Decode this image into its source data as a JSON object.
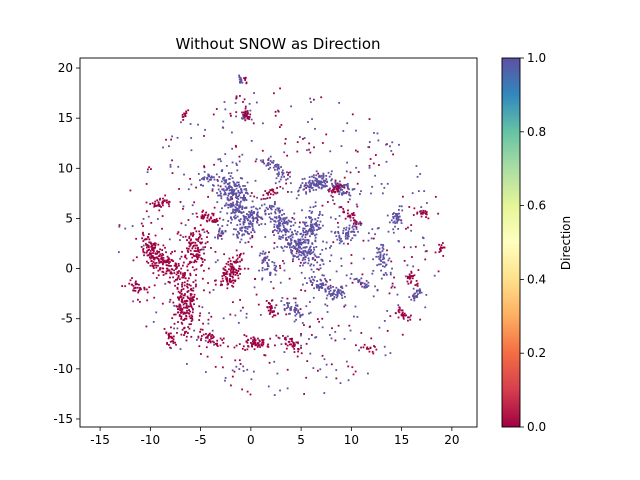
{
  "chart_data": {
    "type": "scatter",
    "title": "Without SNOW as Direction",
    "xlabel": "",
    "ylabel": "",
    "xlim": [
      -17,
      22.5
    ],
    "ylim": [
      -15.8,
      21
    ],
    "x_ticks": [
      -15,
      -10,
      -5,
      0,
      5,
      10,
      15,
      20
    ],
    "y_ticks": [
      -15,
      -10,
      -5,
      0,
      5,
      10,
      15,
      20
    ],
    "grid": false,
    "colorbar": {
      "label": "Direction",
      "range": [
        0.0,
        1.0
      ],
      "ticks": [
        "0.0",
        "0.2",
        "0.4",
        "0.6",
        "0.8",
        "1.0"
      ],
      "colormap": "Spectral",
      "stops": [
        "#9e0142",
        "#d53e4f",
        "#f46d43",
        "#fdae61",
        "#fee08b",
        "#ffffbf",
        "#e6f598",
        "#abdda4",
        "#66c2a5",
        "#3288bd",
        "#5e4fa2"
      ]
    },
    "series": [
      {
        "direction": 1.0,
        "color": "#5e4fa2",
        "clusters": [
          {
            "x": -1.5,
            "y": 7.0,
            "spread": 1.6,
            "n": 260
          },
          {
            "x": 0.0,
            "y": 4.5,
            "spread": 1.0,
            "n": 90
          },
          {
            "x": 3.0,
            "y": 4.5,
            "spread": 1.2,
            "n": 120
          },
          {
            "x": 5.0,
            "y": 2.0,
            "spread": 1.4,
            "n": 160
          },
          {
            "x": 6.5,
            "y": 8.5,
            "spread": 1.0,
            "n": 110
          },
          {
            "x": 9.0,
            "y": 8.0,
            "spread": 0.8,
            "n": 70
          },
          {
            "x": 6.0,
            "y": 4.0,
            "spread": 1.0,
            "n": 100
          },
          {
            "x": 9.5,
            "y": 3.5,
            "spread": 0.8,
            "n": 60
          },
          {
            "x": 7.0,
            "y": -1.5,
            "spread": 1.0,
            "n": 60
          },
          {
            "x": 4.5,
            "y": -4.0,
            "spread": 0.8,
            "n": 50
          },
          {
            "x": 13.0,
            "y": 1.0,
            "spread": 0.8,
            "n": 50
          },
          {
            "x": 14.5,
            "y": 5.0,
            "spread": 0.6,
            "n": 40
          },
          {
            "x": 2.5,
            "y": 10.0,
            "spread": 0.8,
            "n": 50
          },
          {
            "x": 8.5,
            "y": -2.5,
            "spread": 0.6,
            "n": 40
          },
          {
            "x": 1.5,
            "y": 0.5,
            "spread": 0.8,
            "n": 40
          },
          {
            "x": -4.0,
            "y": 9.0,
            "spread": 0.6,
            "n": 30
          },
          {
            "x": -1.0,
            "y": 18.8,
            "spread": 0.2,
            "n": 14
          },
          {
            "x": -0.5,
            "y": 15.3,
            "spread": 0.3,
            "n": 16
          },
          {
            "x": 16.5,
            "y": -2.5,
            "spread": 0.5,
            "n": 25
          },
          {
            "x": 11.0,
            "y": -1.5,
            "spread": 0.5,
            "n": 25
          },
          {
            "x": -3.0,
            "y": 3.5,
            "spread": 0.5,
            "n": 20
          }
        ]
      },
      {
        "direction": 0.0,
        "color": "#9e0142",
        "clusters": [
          {
            "x": -8.5,
            "y": 0.5,
            "spread": 1.4,
            "n": 180
          },
          {
            "x": -5.5,
            "y": 2.0,
            "spread": 1.2,
            "n": 120
          },
          {
            "x": -6.5,
            "y": -4.0,
            "spread": 1.4,
            "n": 170
          },
          {
            "x": -2.0,
            "y": -0.5,
            "spread": 1.0,
            "n": 120
          },
          {
            "x": -10.0,
            "y": 2.0,
            "spread": 0.8,
            "n": 60
          },
          {
            "x": -9.0,
            "y": 6.5,
            "spread": 0.6,
            "n": 40
          },
          {
            "x": -4.0,
            "y": 5.0,
            "spread": 0.6,
            "n": 40
          },
          {
            "x": 0.5,
            "y": -7.5,
            "spread": 0.8,
            "n": 60
          },
          {
            "x": -4.0,
            "y": -7.0,
            "spread": 0.6,
            "n": 40
          },
          {
            "x": 4.0,
            "y": -7.5,
            "spread": 0.6,
            "n": 40
          },
          {
            "x": 2.0,
            "y": -4.0,
            "spread": 0.5,
            "n": 30
          },
          {
            "x": -8.0,
            "y": -7.0,
            "spread": 0.5,
            "n": 25
          },
          {
            "x": 10.0,
            "y": 5.0,
            "spread": 0.6,
            "n": 30
          },
          {
            "x": 8.5,
            "y": 8.0,
            "spread": 0.6,
            "n": 30
          },
          {
            "x": 2.0,
            "y": 7.5,
            "spread": 0.5,
            "n": 20
          },
          {
            "x": 15.0,
            "y": -4.5,
            "spread": 0.5,
            "n": 25
          },
          {
            "x": 16.0,
            "y": -1.0,
            "spread": 0.5,
            "n": 25
          },
          {
            "x": 17.0,
            "y": 5.5,
            "spread": 0.4,
            "n": 20
          },
          {
            "x": 19.0,
            "y": 2.0,
            "spread": 0.3,
            "n": 14
          },
          {
            "x": -0.5,
            "y": 15.5,
            "spread": 0.4,
            "n": 25
          },
          {
            "x": -6.5,
            "y": 15.5,
            "spread": 0.3,
            "n": 12
          },
          {
            "x": -0.5,
            "y": 18.8,
            "spread": 0.15,
            "n": 6
          },
          {
            "x": 12.0,
            "y": -8.0,
            "spread": 0.4,
            "n": 15
          },
          {
            "x": -11.0,
            "y": -2.0,
            "spread": 0.6,
            "n": 30
          }
        ]
      }
    ],
    "scatter_region": {
      "x": 3.0,
      "y": 2.5,
      "radius": 15.5
    },
    "scatter_count": 600,
    "scatter_direction_split": 0.5
  }
}
